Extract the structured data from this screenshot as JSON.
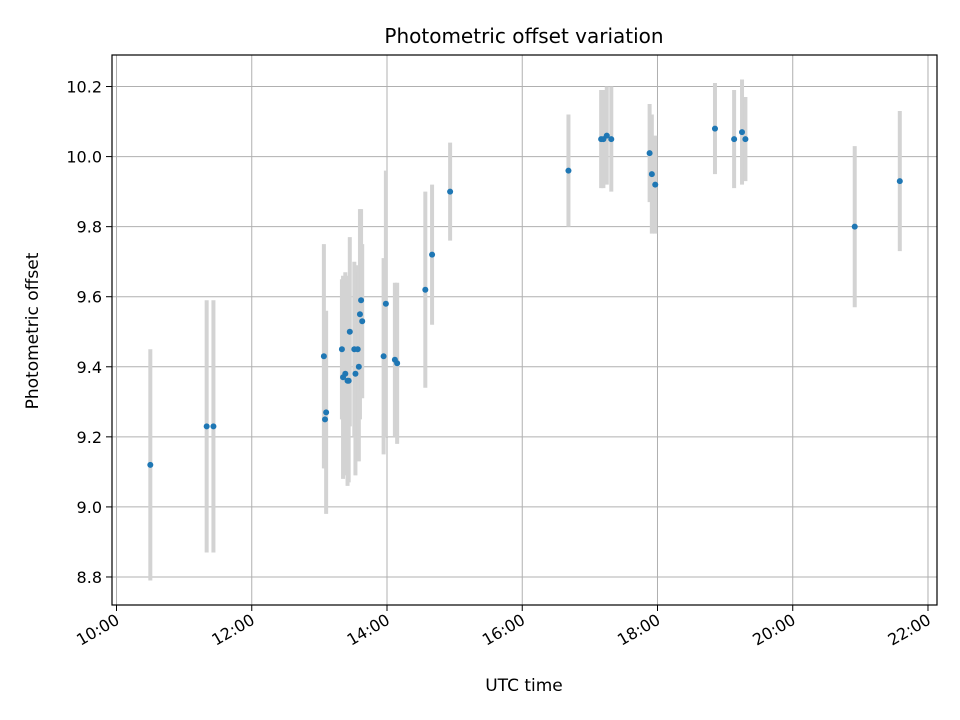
{
  "chart_data": {
    "type": "scatter",
    "title": "Photometric offset variation",
    "xlabel": "UTC time",
    "ylabel": "Photometric offset",
    "xlim": [
      "09:56",
      "22:08"
    ],
    "ylim": [
      8.72,
      10.29
    ],
    "x_ticks": [
      "10:00",
      "12:00",
      "14:00",
      "16:00",
      "18:00",
      "20:00",
      "22:00"
    ],
    "y_ticks": [
      8.8,
      9.0,
      9.2,
      9.4,
      9.6,
      9.8,
      10.0,
      10.2
    ],
    "grid": true,
    "marker_color": "#1f77b4",
    "errorbar_color": "#d3d3d3",
    "points": [
      {
        "x": "10:30",
        "y": 9.12,
        "err": 0.33
      },
      {
        "x": "11:20",
        "y": 9.23,
        "err": 0.36
      },
      {
        "x": "11:26",
        "y": 9.23,
        "err": 0.36
      },
      {
        "x": "13:04",
        "y": 9.43,
        "err": 0.32
      },
      {
        "x": "13:05",
        "y": 9.25,
        "err": 0.14
      },
      {
        "x": "13:06",
        "y": 9.27,
        "err": 0.29
      },
      {
        "x": "13:20",
        "y": 9.45,
        "err": 0.2
      },
      {
        "x": "13:21",
        "y": 9.37,
        "err": 0.29
      },
      {
        "x": "13:23",
        "y": 9.38,
        "err": 0.29
      },
      {
        "x": "13:25",
        "y": 9.36,
        "err": 0.3
      },
      {
        "x": "13:26",
        "y": 9.36,
        "err": 0.29
      },
      {
        "x": "13:27",
        "y": 9.5,
        "err": 0.27
      },
      {
        "x": "13:31",
        "y": 9.45,
        "err": 0.25
      },
      {
        "x": "13:32",
        "y": 9.38,
        "err": 0.29
      },
      {
        "x": "13:34",
        "y": 9.45,
        "err": 0.24
      },
      {
        "x": "13:35",
        "y": 9.4,
        "err": 0.27
      },
      {
        "x": "13:36",
        "y": 9.55,
        "err": 0.3
      },
      {
        "x": "13:37",
        "y": 9.59,
        "err": 0.26
      },
      {
        "x": "13:38",
        "y": 9.53,
        "err": 0.22
      },
      {
        "x": "13:57",
        "y": 9.43,
        "err": 0.28
      },
      {
        "x": "13:59",
        "y": 9.58,
        "err": 0.38
      },
      {
        "x": "14:07",
        "y": 9.42,
        "err": 0.22
      },
      {
        "x": "14:09",
        "y": 9.41,
        "err": 0.23
      },
      {
        "x": "14:34",
        "y": 9.62,
        "err": 0.28
      },
      {
        "x": "14:40",
        "y": 9.72,
        "err": 0.2
      },
      {
        "x": "14:56",
        "y": 9.9,
        "err": 0.14
      },
      {
        "x": "16:41",
        "y": 9.96,
        "err": 0.16
      },
      {
        "x": "17:10",
        "y": 10.05,
        "err": 0.14
      },
      {
        "x": "17:12",
        "y": 10.05,
        "err": 0.14
      },
      {
        "x": "17:15",
        "y": 10.06,
        "err": 0.14
      },
      {
        "x": "17:19",
        "y": 10.05,
        "err": 0.15
      },
      {
        "x": "17:53",
        "y": 10.01,
        "err": 0.14
      },
      {
        "x": "17:55",
        "y": 9.95,
        "err": 0.17
      },
      {
        "x": "17:58",
        "y": 9.92,
        "err": 0.14
      },
      {
        "x": "18:51",
        "y": 10.08,
        "err": 0.13
      },
      {
        "x": "19:08",
        "y": 10.05,
        "err": 0.14
      },
      {
        "x": "19:15",
        "y": 10.07,
        "err": 0.15
      },
      {
        "x": "19:18",
        "y": 10.05,
        "err": 0.12
      },
      {
        "x": "20:55",
        "y": 9.8,
        "err": 0.23
      },
      {
        "x": "21:35",
        "y": 9.93,
        "err": 0.2
      }
    ]
  }
}
